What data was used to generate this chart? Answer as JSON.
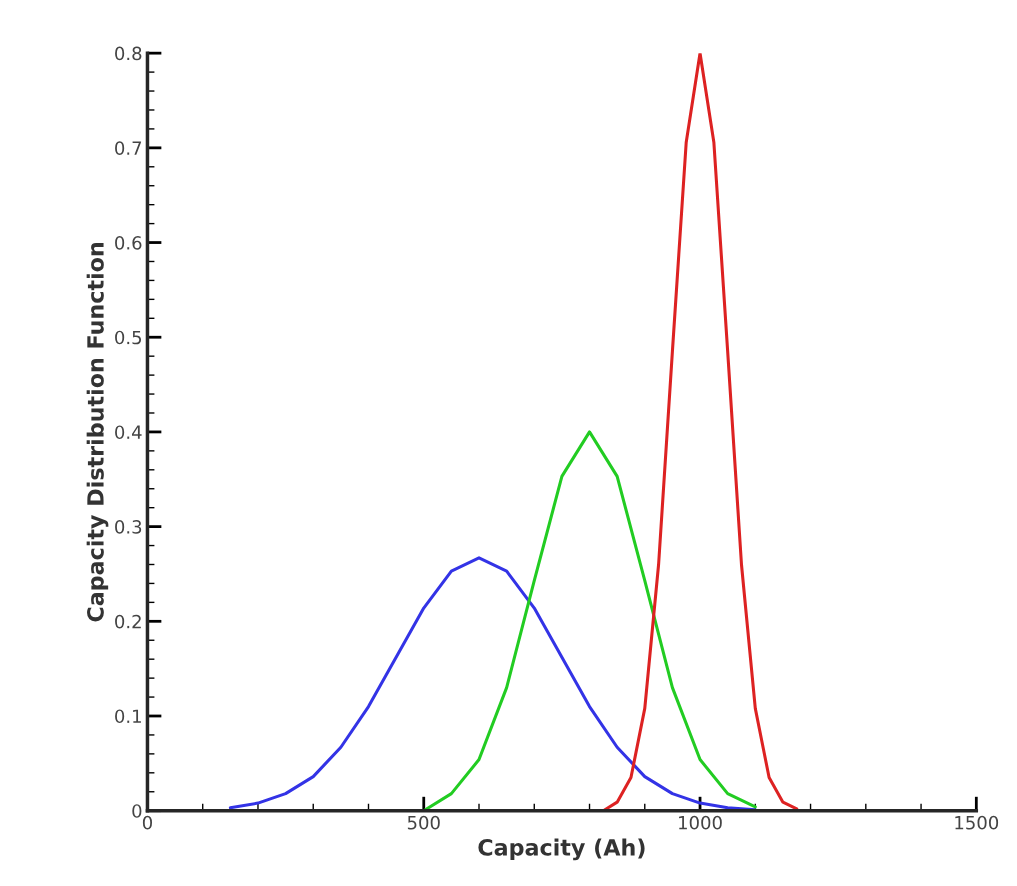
{
  "chart_data": {
    "type": "line",
    "xlabel": "Capacity (Ah)",
    "ylabel": "Capacity Distribution Function",
    "xlim": [
      0,
      1500
    ],
    "ylim": [
      0,
      0.8
    ],
    "xticks": [
      0,
      500,
      1000,
      1500
    ],
    "yticks": [
      0,
      0.1,
      0.2,
      0.3,
      0.4,
      0.5,
      0.6,
      0.7,
      0.8
    ],
    "grid": false,
    "legend": false,
    "marker": "none",
    "line_style": "solid",
    "series": [
      {
        "color": "#3333e6",
        "x": [
          150,
          200,
          250,
          300,
          350,
          400,
          450,
          500,
          550,
          600,
          650,
          700,
          750,
          800,
          850,
          900,
          950,
          1000,
          1050,
          1100
        ],
        "values": [
          0.003,
          0.008,
          0.018,
          0.036,
          0.067,
          0.11,
          0.162,
          0.214,
          0.253,
          0.267,
          0.253,
          0.214,
          0.162,
          0.11,
          0.067,
          0.036,
          0.018,
          0.008,
          0.003,
          0.001
        ]
      },
      {
        "color": "#22cc22",
        "x": [
          500,
          550,
          600,
          650,
          700,
          750,
          800,
          850,
          900,
          950,
          1000,
          1050,
          1100
        ],
        "values": [
          0.0,
          0.018,
          0.054,
          0.13,
          0.243,
          0.353,
          0.4,
          0.353,
          0.243,
          0.13,
          0.054,
          0.018,
          0.004
        ]
      },
      {
        "color": "#dd2222",
        "x": [
          825,
          850,
          875,
          900,
          925,
          950,
          975,
          1000,
          1025,
          1050,
          1075,
          1100,
          1125,
          1150,
          1175
        ],
        "values": [
          0.0,
          0.009,
          0.035,
          0.108,
          0.26,
          0.485,
          0.706,
          0.8,
          0.706,
          0.485,
          0.26,
          0.108,
          0.035,
          0.009,
          0.002
        ]
      }
    ]
  }
}
